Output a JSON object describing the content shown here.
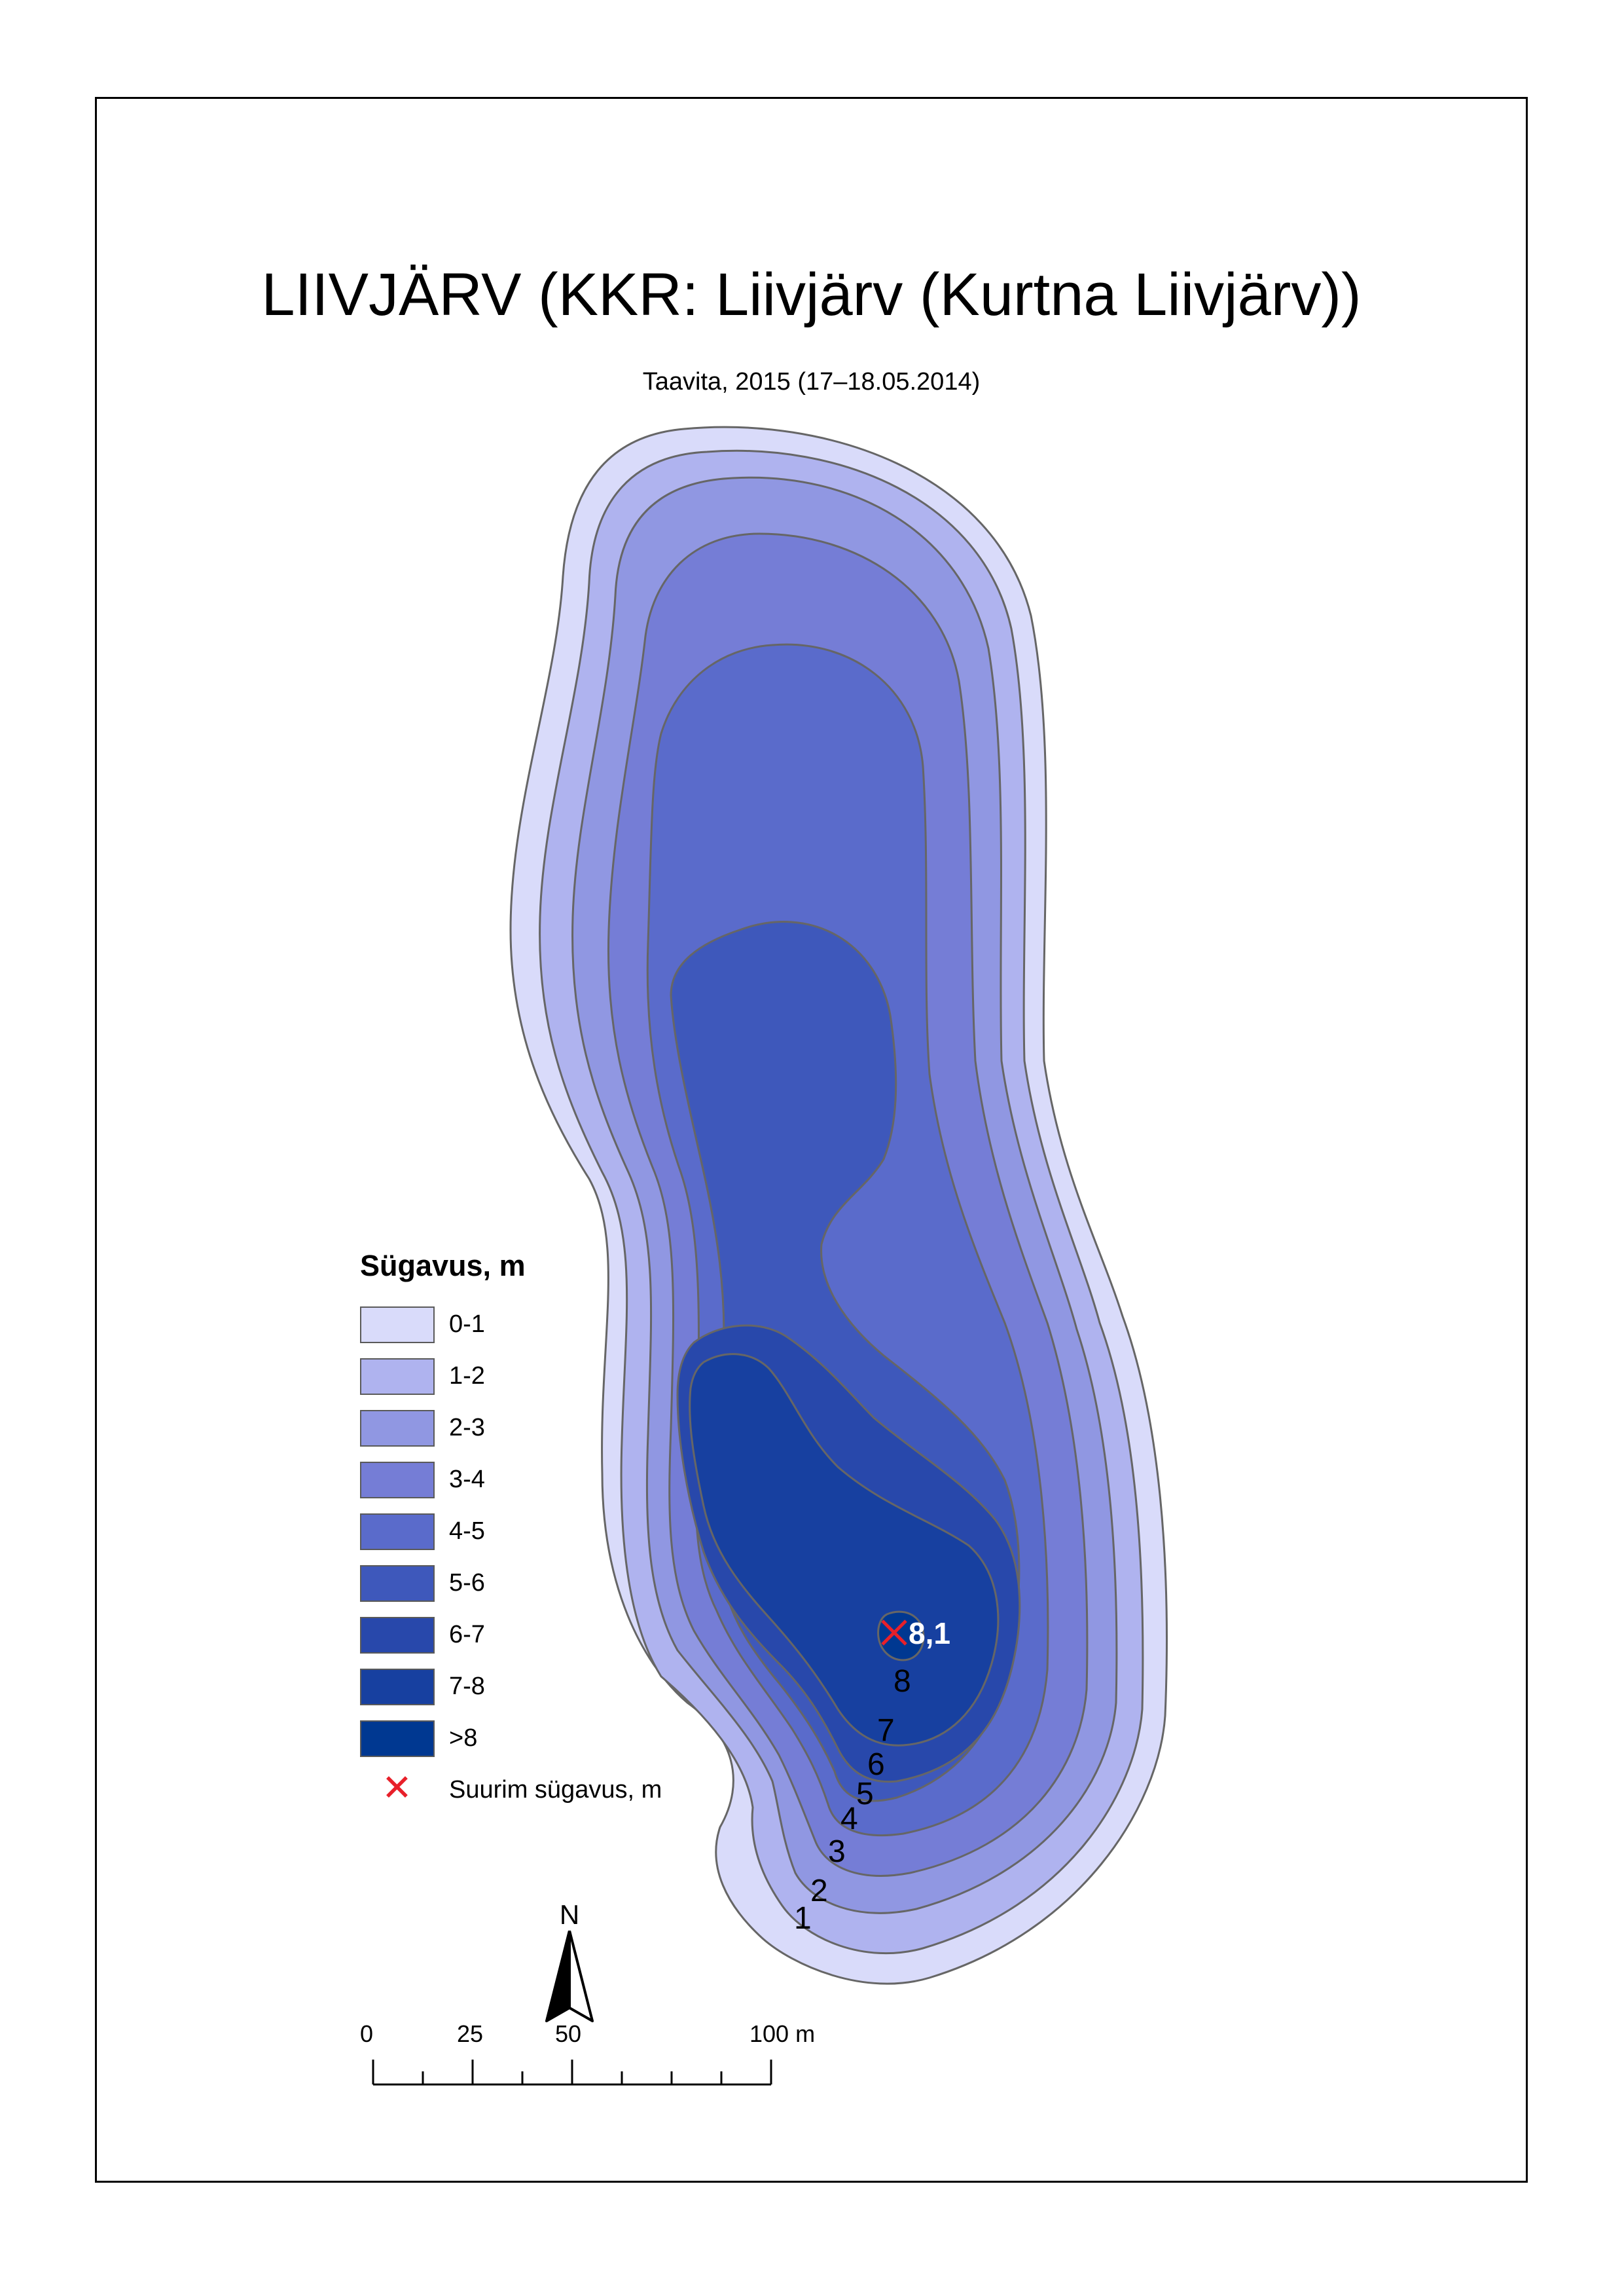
{
  "title": "LIIVJÄRV (KKR: Liivjärv (Kurtna Liivjärv))",
  "subtitle": "Taavita, 2015 (17–18.05.2014)",
  "legend": {
    "title": "Sügavus, m",
    "classes": [
      {
        "label": "0-1",
        "color": "#d9dbfa"
      },
      {
        "label": "1-2",
        "color": "#afb3ef"
      },
      {
        "label": "2-3",
        "color": "#9097e2"
      },
      {
        "label": "3-4",
        "color": "#757dd6"
      },
      {
        "label": "4-5",
        "color": "#5a6bcb"
      },
      {
        "label": "5-6",
        "color": "#3e58bb"
      },
      {
        "label": "6-7",
        "color": "#2848ab"
      },
      {
        "label": "7-8",
        "color": "#1740a0"
      },
      {
        "label": ">8",
        "color": "#003891"
      }
    ],
    "max_depth_label": "Suurim sügavus, m",
    "max_depth_icon": "cross-icon"
  },
  "map": {
    "max_depth_value": "8,1",
    "contour_labels": [
      "1",
      "2",
      "3",
      "4",
      "5",
      "6",
      "7",
      "8"
    ]
  },
  "north_arrow": {
    "label": "N",
    "icon": "north-arrow-icon"
  },
  "scale_bar": {
    "ticks": [
      "0",
      "25",
      "50",
      "100 m"
    ]
  }
}
